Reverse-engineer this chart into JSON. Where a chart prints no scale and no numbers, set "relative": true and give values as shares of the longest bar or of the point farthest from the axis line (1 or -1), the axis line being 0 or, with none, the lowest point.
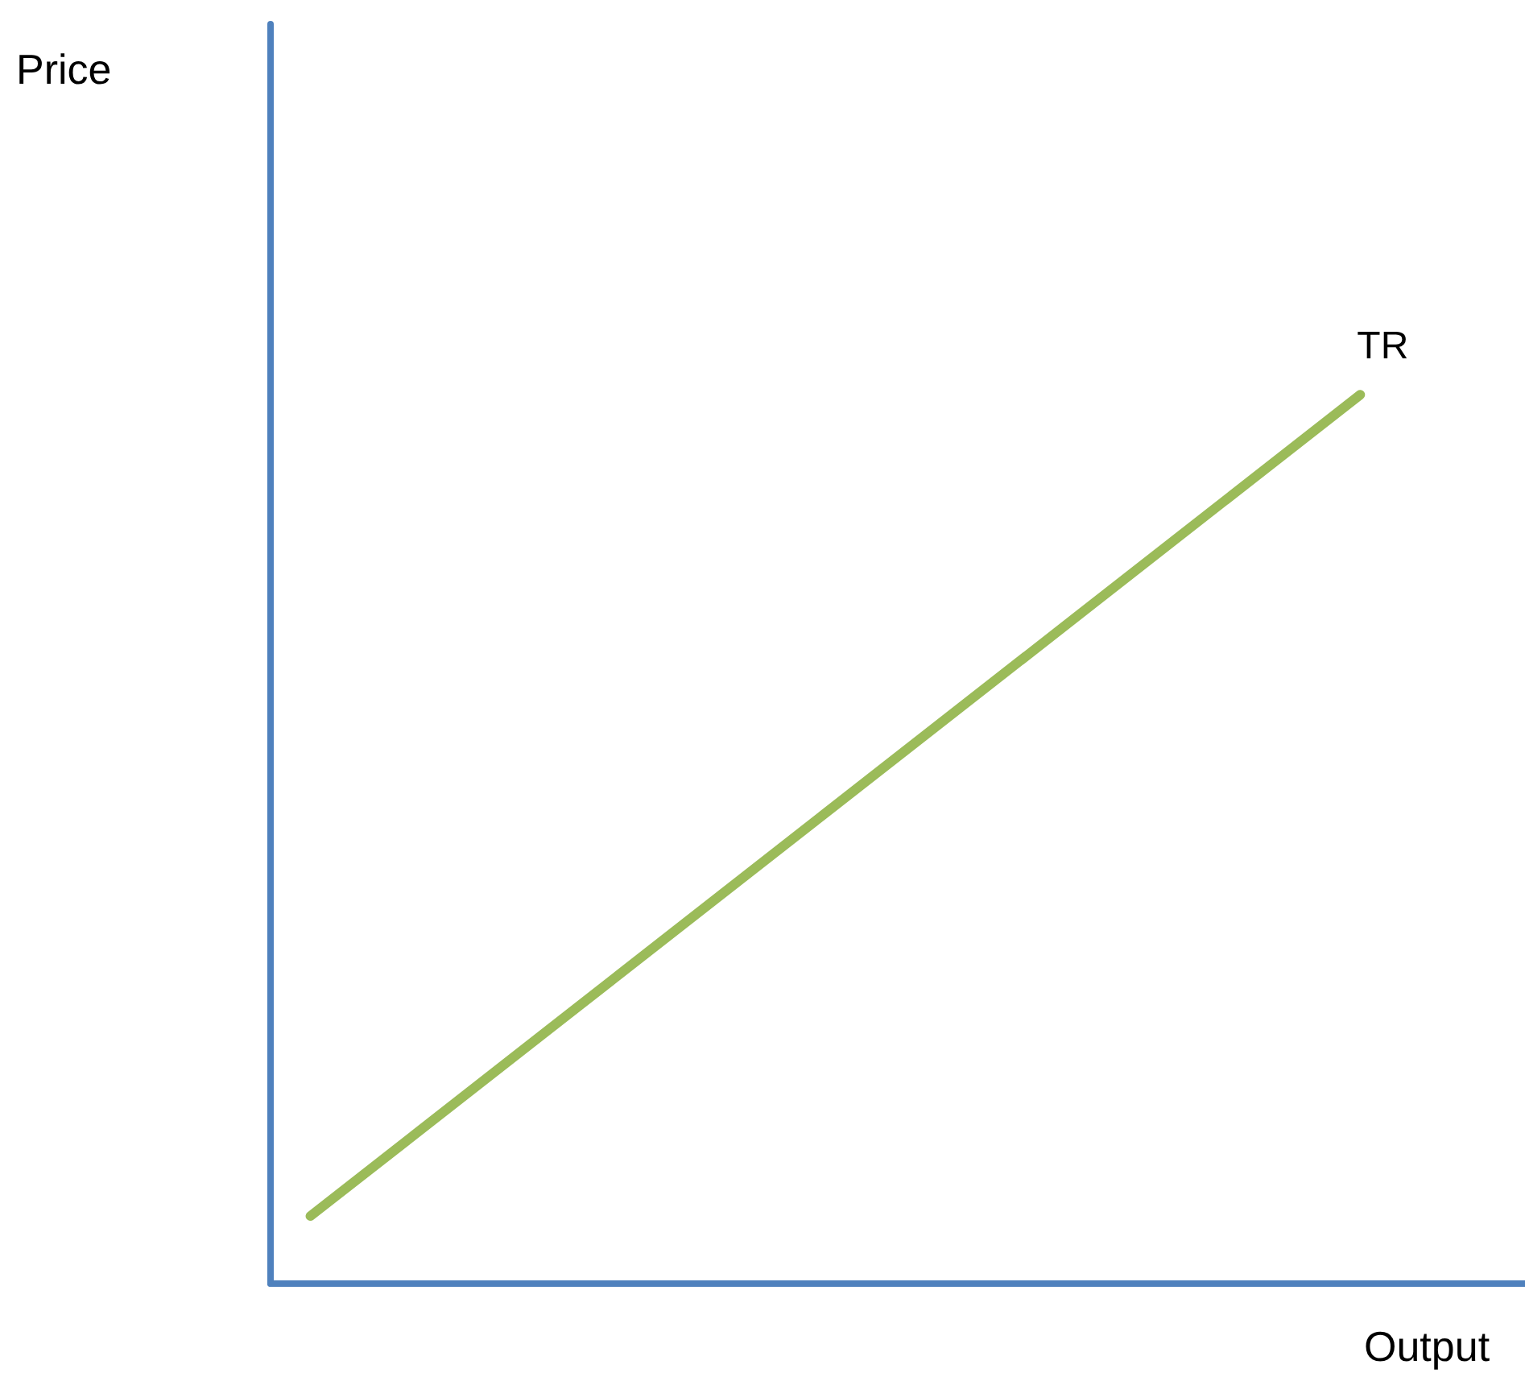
{
  "chart_data": {
    "type": "line",
    "xlabel": "Output",
    "annotations": [
      "Price"
    ],
    "relative": true,
    "categories": [
      null,
      null
    ],
    "series": [
      {
        "name": "TR",
        "color": "#9bbb59",
        "values": [
          0.076,
          1
        ]
      }
    ],
    "legend": false,
    "grid": false,
    "marker": "none",
    "line_style": "solid"
  }
}
